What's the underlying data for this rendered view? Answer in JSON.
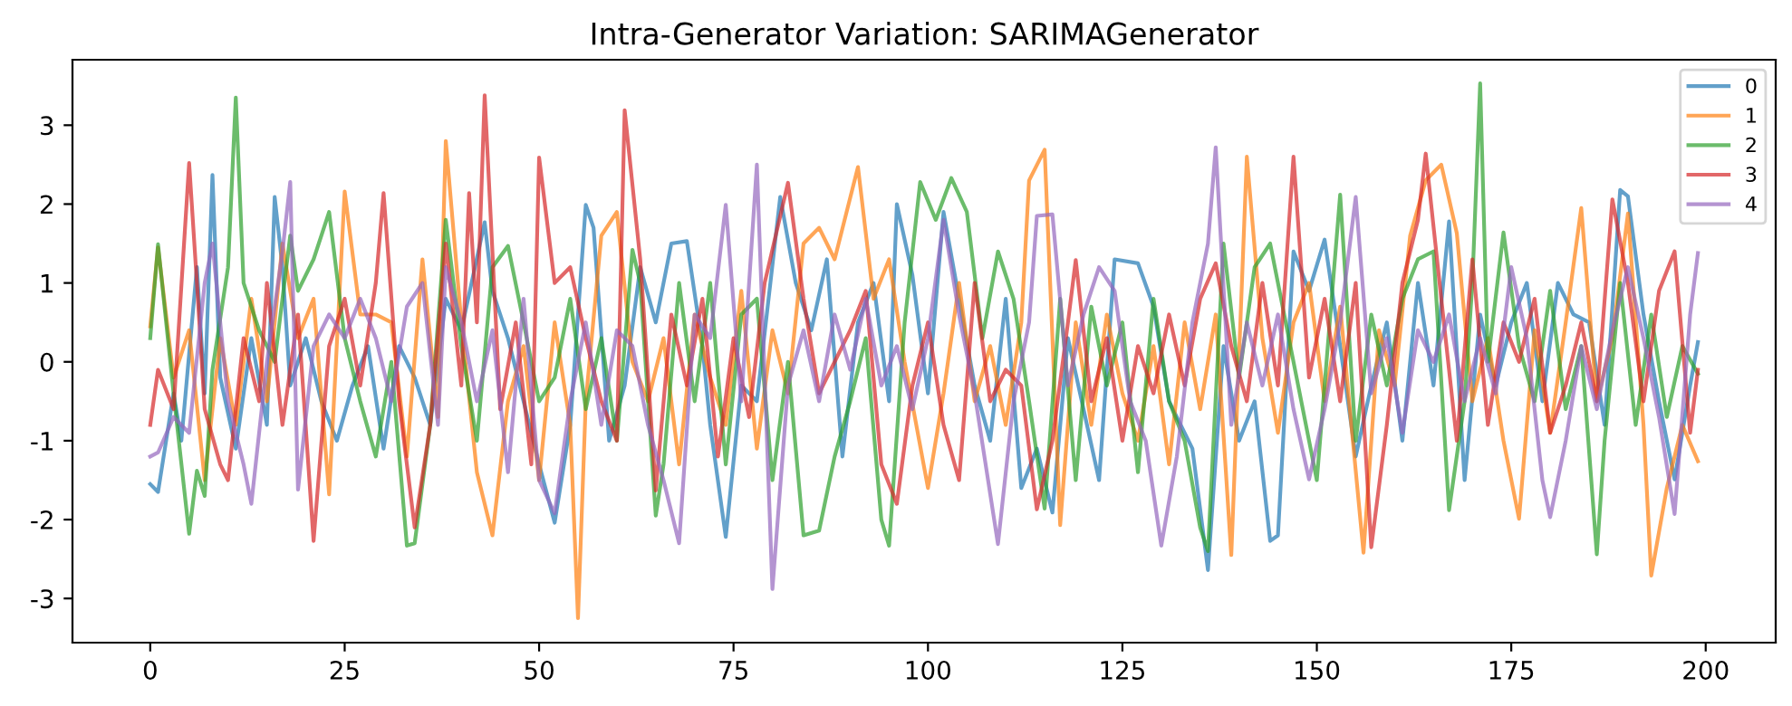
{
  "chart_data": {
    "type": "line",
    "title": "Intra-Generator Variation: SARIMAGenerator",
    "xlim": [
      -10,
      209
    ],
    "xticks": [
      0,
      25,
      50,
      75,
      100,
      125,
      150,
      175,
      200
    ],
    "ylim": [
      -3.56,
      3.83
    ],
    "yticks": [
      -3,
      -2,
      -1,
      0,
      1,
      2,
      3
    ],
    "grid": false,
    "legend": "top right",
    "marker": "none",
    "line_style": "solid",
    "series": [
      {
        "name": "0",
        "color": "#1f77b4",
        "x": [
          0,
          1,
          3,
          4,
          6,
          7,
          8,
          9,
          11,
          13,
          15,
          16,
          17,
          18,
          20,
          22,
          24,
          26,
          28,
          30,
          32,
          34,
          36,
          38,
          40,
          43,
          44,
          46,
          48,
          50,
          52,
          54,
          56,
          57,
          59,
          61,
          63,
          65,
          67,
          69,
          71,
          72,
          74,
          76,
          78,
          81,
          83,
          85,
          87,
          89,
          91,
          93,
          95,
          96,
          98,
          100,
          102,
          104,
          106,
          108,
          110,
          112,
          114,
          116,
          118,
          120,
          122,
          124,
          127,
          129,
          131,
          134,
          136,
          138,
          140,
          142,
          144,
          145,
          147,
          149,
          151,
          153,
          155,
          157,
          159,
          161,
          163,
          165,
          167,
          169,
          171,
          173,
          175,
          177,
          179,
          181,
          183,
          185,
          187,
          189,
          190,
          192,
          194,
          196,
          198,
          199
        ],
        "values": [
          -1.55,
          -1.65,
          -0.4,
          -1.0,
          1.2,
          -0.4,
          2.37,
          -0.2,
          -1.1,
          0.3,
          -0.8,
          2.09,
          1.2,
          -0.3,
          0.3,
          -0.5,
          -1.0,
          -0.3,
          0.2,
          -1.1,
          0.2,
          -0.2,
          -0.8,
          0.8,
          0.4,
          1.77,
          0.9,
          0.3,
          -0.5,
          -1.3,
          -2.04,
          -0.8,
          1.99,
          1.7,
          -1.0,
          -0.3,
          1.2,
          0.5,
          1.5,
          1.53,
          0.2,
          -0.8,
          -2.22,
          -0.3,
          -0.5,
          2.09,
          1.0,
          0.4,
          1.3,
          -1.2,
          0.5,
          1.0,
          -0.5,
          2.0,
          1.1,
          -0.4,
          1.9,
          0.8,
          -0.3,
          -1.0,
          0.8,
          -1.6,
          -1.1,
          -1.91,
          0.3,
          -0.6,
          -1.5,
          1.3,
          1.25,
          0.7,
          -0.5,
          -1.1,
          -2.64,
          0.2,
          -1.0,
          -0.5,
          -2.27,
          -2.2,
          1.4,
          0.9,
          1.55,
          0.2,
          -1.2,
          -0.3,
          0.5,
          -1.0,
          1.0,
          -0.3,
          1.78,
          -1.5,
          0.6,
          -0.3,
          0.5,
          1.0,
          -0.5,
          1.0,
          0.6,
          0.5,
          -0.8,
          2.18,
          2.1,
          0.6,
          -0.5,
          -1.49,
          -0.3,
          0.25
        ]
      },
      {
        "name": "1",
        "color": "#ff7f0e",
        "x": [
          0,
          1,
          3,
          5,
          7,
          9,
          11,
          13,
          15,
          17,
          19,
          21,
          23,
          25,
          27,
          29,
          31,
          33,
          35,
          37,
          38,
          40,
          42,
          44,
          46,
          48,
          50,
          52,
          54,
          55,
          56,
          58,
          60,
          62,
          64,
          66,
          68,
          70,
          72,
          74,
          76,
          78,
          80,
          82,
          84,
          86,
          88,
          91,
          93,
          95,
          97,
          100,
          102,
          104,
          106,
          108,
          110,
          112,
          113,
          115,
          117,
          119,
          121,
          123,
          125,
          127,
          129,
          131,
          133,
          135,
          137,
          139,
          141,
          143,
          145,
          147,
          149,
          151,
          153,
          156,
          158,
          160,
          162,
          164,
          166,
          168,
          170,
          172,
          174,
          176,
          178,
          180,
          182,
          184,
          186,
          188,
          190,
          192,
          193,
          195,
          197,
          199
        ],
        "values": [
          0.45,
          1.45,
          -0.2,
          0.4,
          -1.5,
          0.3,
          -0.8,
          0.8,
          -0.5,
          1.5,
          0.3,
          0.8,
          -1.68,
          2.16,
          0.6,
          0.6,
          0.5,
          -1.2,
          1.3,
          -0.7,
          2.8,
          0.5,
          -1.4,
          -2.2,
          -0.5,
          0.2,
          -1.5,
          0.5,
          -0.8,
          -3.25,
          -0.5,
          1.6,
          1.9,
          0.0,
          -0.5,
          0.3,
          -1.3,
          0.6,
          -0.2,
          -0.8,
          0.9,
          -1.1,
          0.4,
          -0.4,
          1.5,
          1.7,
          1.3,
          2.47,
          0.8,
          1.3,
          0.0,
          -1.6,
          -0.4,
          1.0,
          -0.5,
          0.2,
          -0.8,
          0.5,
          2.3,
          2.69,
          -2.07,
          0.5,
          -0.8,
          0.6,
          -0.4,
          -1.0,
          0.2,
          -1.3,
          0.5,
          -0.6,
          0.6,
          -2.45,
          2.6,
          0.3,
          -0.9,
          0.5,
          1.0,
          -0.5,
          0.7,
          -2.42,
          0.4,
          -0.3,
          1.6,
          2.3,
          2.5,
          1.63,
          -0.5,
          0.3,
          -1.0,
          -1.99,
          0.4,
          -0.9,
          0.5,
          1.95,
          -0.5,
          0.3,
          1.88,
          -0.8,
          -2.71,
          -1.6,
          -0.8,
          -1.26
        ]
      },
      {
        "name": "2",
        "color": "#2ca02c",
        "x": [
          0,
          1,
          3,
          5,
          6,
          7,
          8,
          10,
          11,
          12,
          14,
          16,
          18,
          19,
          21,
          23,
          25,
          27,
          29,
          31,
          33,
          34,
          36,
          38,
          40,
          42,
          44,
          46,
          48,
          50,
          52,
          54,
          56,
          58,
          60,
          62,
          63,
          65,
          66,
          68,
          70,
          72,
          74,
          76,
          78,
          80,
          82,
          84,
          86,
          88,
          90,
          92,
          94,
          95,
          97,
          99,
          101,
          103,
          105,
          107,
          109,
          111,
          113,
          115,
          117,
          119,
          121,
          123,
          125,
          127,
          129,
          131,
          133,
          135,
          136,
          138,
          140,
          142,
          144,
          146,
          148,
          150,
          153,
          155,
          157,
          159,
          161,
          163,
          165,
          167,
          169,
          170,
          171,
          172,
          174,
          176,
          178,
          180,
          182,
          184,
          186,
          187,
          189,
          191,
          193,
          195,
          197,
          199
        ],
        "values": [
          0.3,
          1.49,
          -0.4,
          -2.18,
          -1.38,
          -1.7,
          -0.1,
          1.2,
          3.35,
          1.0,
          0.4,
          0.0,
          1.6,
          0.9,
          1.3,
          1.9,
          0.3,
          -0.5,
          -1.2,
          0.0,
          -2.33,
          -2.3,
          -0.8,
          1.8,
          0.2,
          -1.0,
          1.2,
          1.47,
          0.5,
          -0.5,
          -0.2,
          0.8,
          -0.6,
          0.3,
          -1.0,
          1.42,
          1.0,
          -1.95,
          -1.3,
          1.0,
          -0.5,
          1.0,
          -1.3,
          0.6,
          0.8,
          -1.5,
          0.0,
          -2.2,
          -2.14,
          -1.2,
          -0.5,
          0.3,
          -2.0,
          -2.33,
          0.5,
          2.28,
          1.8,
          2.33,
          1.9,
          0.3,
          1.4,
          0.8,
          -0.5,
          -1.86,
          0.8,
          -1.5,
          0.7,
          -0.3,
          0.5,
          -1.4,
          0.8,
          -0.5,
          -1.0,
          -2.1,
          -2.4,
          1.5,
          -0.2,
          1.2,
          1.5,
          0.5,
          -0.5,
          -1.5,
          2.12,
          -1.0,
          0.6,
          -0.3,
          0.8,
          1.3,
          1.4,
          -1.88,
          -0.5,
          1.0,
          3.53,
          0.0,
          1.64,
          0.2,
          -0.5,
          0.9,
          -0.6,
          0.2,
          -2.44,
          -1.0,
          1.0,
          -0.8,
          0.6,
          -0.7,
          0.2,
          -0.15
        ]
      },
      {
        "name": "3",
        "color": "#d62728",
        "x": [
          0,
          1,
          3,
          5,
          6,
          7,
          9,
          10,
          12,
          14,
          15,
          17,
          19,
          21,
          23,
          25,
          27,
          29,
          30,
          32,
          34,
          36,
          38,
          40,
          41,
          42,
          43,
          45,
          47,
          49,
          50,
          52,
          54,
          56,
          58,
          60,
          61,
          63,
          65,
          67,
          69,
          71,
          73,
          75,
          77,
          79,
          82,
          84,
          86,
          88,
          90,
          92,
          94,
          96,
          98,
          100,
          102,
          104,
          106,
          108,
          110,
          112,
          114,
          116,
          118,
          119,
          121,
          123,
          125,
          127,
          129,
          131,
          133,
          135,
          137,
          139,
          141,
          143,
          145,
          147,
          149,
          151,
          153,
          155,
          157,
          159,
          161,
          163,
          164,
          166,
          168,
          170,
          172,
          174,
          176,
          178,
          180,
          182,
          184,
          186,
          188,
          190,
          192,
          194,
          196,
          198,
          199
        ],
        "values": [
          -0.8,
          -0.1,
          -0.6,
          2.52,
          1.0,
          -0.6,
          -1.3,
          -1.5,
          0.3,
          -0.5,
          1.0,
          -0.8,
          0.6,
          -2.27,
          0.2,
          0.8,
          -0.3,
          1.0,
          2.14,
          -0.5,
          -2.1,
          -0.8,
          1.5,
          -0.3,
          2.14,
          0.5,
          3.38,
          -0.6,
          0.5,
          -1.3,
          2.59,
          1.0,
          1.2,
          0.3,
          -0.5,
          -1.0,
          3.19,
          1.3,
          -1.63,
          0.6,
          -0.3,
          0.8,
          -1.2,
          0.3,
          -0.7,
          1.0,
          2.27,
          0.8,
          -0.4,
          0.0,
          0.4,
          0.9,
          -1.3,
          -1.8,
          -0.3,
          0.5,
          -0.8,
          -1.5,
          1.0,
          -0.5,
          -0.1,
          -0.3,
          -1.87,
          -1.0,
          0.5,
          1.29,
          -0.5,
          0.3,
          -1.0,
          0.2,
          -0.4,
          0.6,
          -0.3,
          0.8,
          1.25,
          0.2,
          -0.5,
          1.0,
          -0.3,
          2.6,
          -0.2,
          0.8,
          -0.5,
          1.0,
          -2.35,
          -0.8,
          1.0,
          1.8,
          2.64,
          0.8,
          -1.0,
          1.3,
          -0.8,
          0.5,
          0.0,
          0.8,
          -0.9,
          -0.3,
          0.5,
          -0.5,
          2.06,
          1.0,
          -0.5,
          0.9,
          1.4,
          -0.9,
          -0.1
        ]
      },
      {
        "name": "4",
        "color": "#9467bd",
        "x": [
          0,
          1,
          3,
          5,
          7,
          8,
          10,
          12,
          13,
          15,
          17,
          18,
          19,
          21,
          23,
          25,
          27,
          29,
          31,
          33,
          35,
          37,
          38,
          40,
          42,
          44,
          46,
          48,
          50,
          52,
          54,
          56,
          58,
          60,
          62,
          64,
          66,
          68,
          70,
          72,
          74,
          76,
          78,
          80,
          82,
          84,
          86,
          88,
          90,
          92,
          94,
          96,
          98,
          100,
          102,
          104,
          106,
          109,
          111,
          113,
          114,
          116,
          118,
          120,
          122,
          124,
          126,
          128,
          130,
          132,
          134,
          136,
          137,
          139,
          141,
          143,
          145,
          147,
          149,
          151,
          153,
          155,
          157,
          159,
          161,
          163,
          165,
          167,
          169,
          171,
          173,
          175,
          177,
          179,
          180,
          182,
          184,
          186,
          188,
          190,
          192,
          194,
          196,
          198,
          199
        ],
        "values": [
          -1.2,
          -1.15,
          -0.7,
          -0.9,
          1.0,
          1.5,
          -0.5,
          -1.3,
          -1.8,
          0.0,
          1.4,
          2.28,
          -1.62,
          0.2,
          0.6,
          0.3,
          0.8,
          0.3,
          -0.5,
          0.7,
          1.0,
          -0.8,
          1.2,
          0.5,
          -0.5,
          0.4,
          -1.4,
          0.8,
          -1.5,
          -1.92,
          -0.5,
          0.5,
          -0.8,
          0.4,
          0.2,
          -0.8,
          -1.5,
          -2.3,
          0.6,
          0.3,
          1.99,
          -0.5,
          2.5,
          -2.88,
          -0.3,
          0.4,
          -0.5,
          0.6,
          -0.1,
          0.8,
          -0.3,
          0.2,
          -0.6,
          0.3,
          1.8,
          0.6,
          -0.4,
          -2.31,
          -0.5,
          0.5,
          1.85,
          1.87,
          -0.3,
          0.6,
          1.2,
          0.9,
          -0.5,
          -1.0,
          -2.33,
          -1.2,
          0.5,
          1.5,
          2.72,
          -0.8,
          0.5,
          -0.3,
          0.6,
          -0.6,
          -1.49,
          -0.6,
          0.5,
          2.09,
          -0.4,
          0.3,
          -0.9,
          0.4,
          0.0,
          0.6,
          -0.5,
          0.3,
          -0.4,
          1.2,
          0.3,
          -1.5,
          -1.97,
          -1.0,
          0.2,
          -0.6,
          0.4,
          1.2,
          0.3,
          -0.7,
          -1.93,
          0.6,
          1.38
        ]
      }
    ]
  }
}
